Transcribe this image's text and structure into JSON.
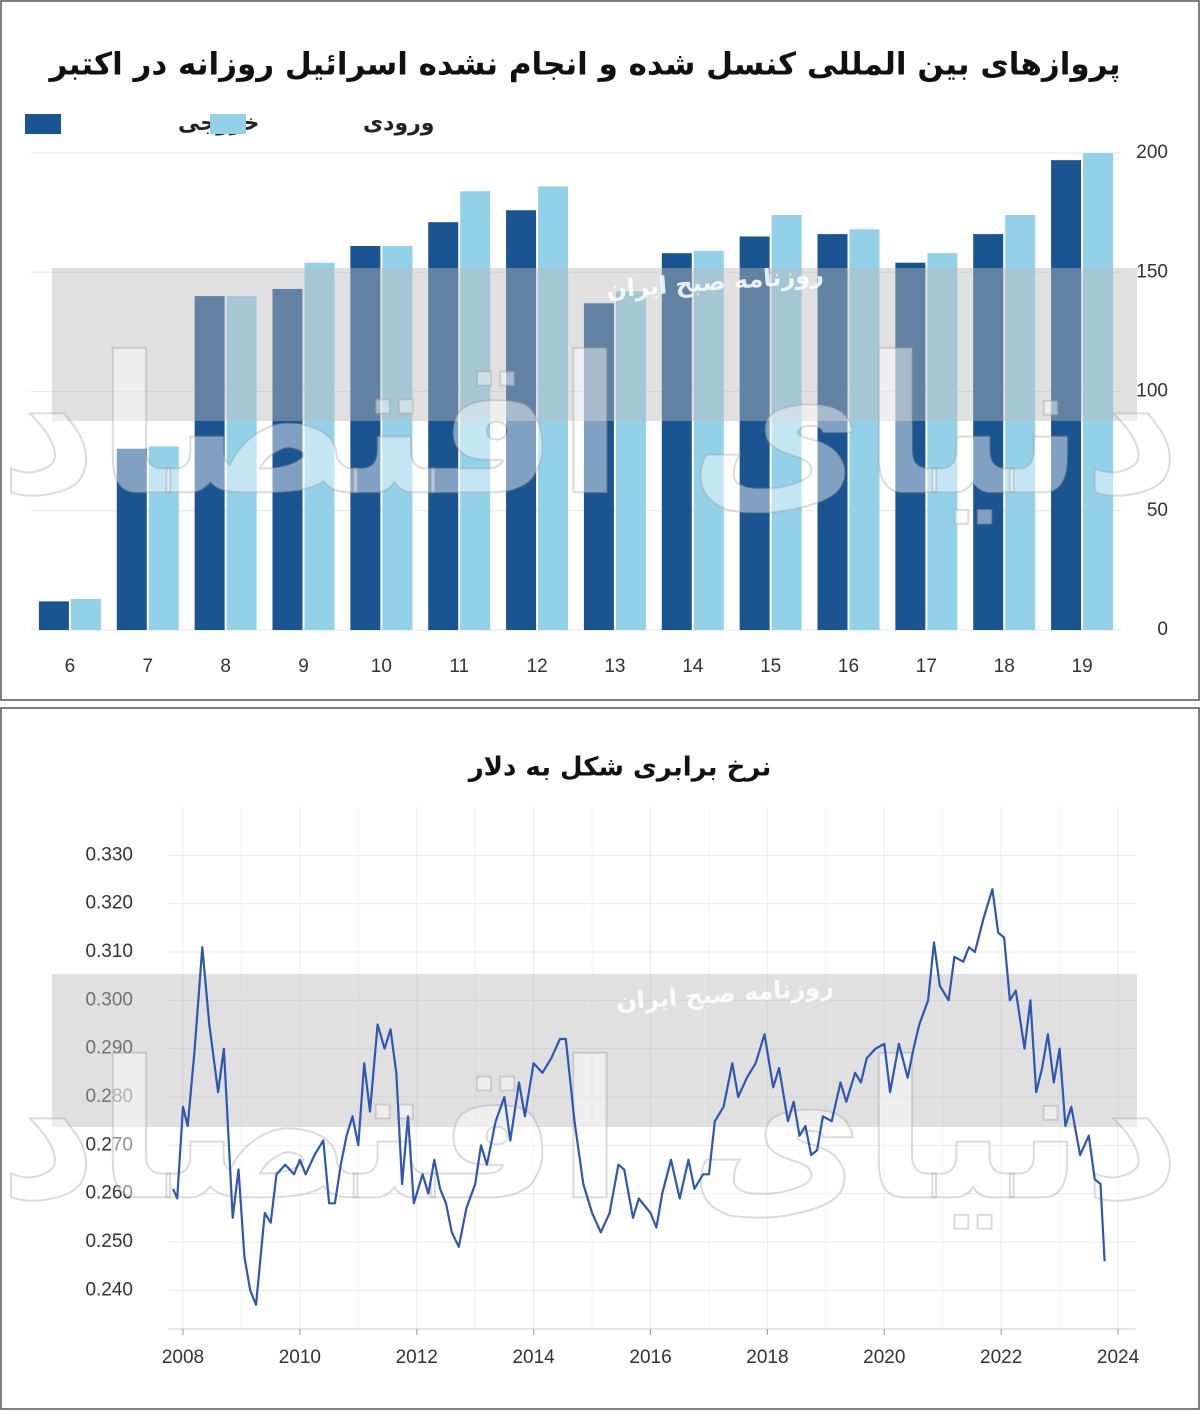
{
  "chart_data": [
    {
      "type": "bar",
      "title": "پروازهای بین المللی کنسل شده و انجام نشده اسرائیل روزانه در اکتبر",
      "categories": [
        "6",
        "7",
        "8",
        "9",
        "10",
        "11",
        "12",
        "13",
        "14",
        "15",
        "16",
        "17",
        "18",
        "19"
      ],
      "series": [
        {
          "name": "خروجی",
          "color": "#1a5591",
          "values": [
            12,
            76,
            140,
            143,
            161,
            171,
            176,
            137,
            158,
            165,
            166,
            154,
            166,
            197
          ]
        },
        {
          "name": "ورودی",
          "color": "#93d1e8",
          "values": [
            13,
            77,
            140,
            154,
            161,
            184,
            186,
            142,
            159,
            174,
            168,
            158,
            174,
            200
          ]
        }
      ],
      "ylim": [
        0,
        200
      ],
      "yticks": [
        0,
        50,
        100,
        150,
        200
      ],
      "grid": true,
      "watermark": "روزنامه صبح ایران",
      "logo": "دنیای اقتصاد"
    },
    {
      "type": "line",
      "title": "نرخ برابری شکل به دلار",
      "color": "#2f56b0",
      "x": [
        2007.83,
        2007.9,
        2008.0,
        2008.08,
        2008.2,
        2008.33,
        2008.45,
        2008.6,
        2008.7,
        2008.85,
        2008.95,
        2009.05,
        2009.15,
        2009.25,
        2009.4,
        2009.5,
        2009.6,
        2009.75,
        2009.9,
        2010.0,
        2010.1,
        2010.25,
        2010.4,
        2010.5,
        2010.6,
        2010.7,
        2010.8,
        2010.9,
        2011.0,
        2011.1,
        2011.2,
        2011.33,
        2011.45,
        2011.55,
        2011.65,
        2011.75,
        2011.85,
        2011.95,
        2012.1,
        2012.2,
        2012.3,
        2012.4,
        2012.5,
        2012.6,
        2012.72,
        2012.85,
        2013.0,
        2013.1,
        2013.2,
        2013.35,
        2013.5,
        2013.6,
        2013.75,
        2013.85,
        2014.0,
        2014.15,
        2014.3,
        2014.45,
        2014.55,
        2014.7,
        2014.85,
        2015.0,
        2015.15,
        2015.3,
        2015.45,
        2015.55,
        2015.7,
        2015.8,
        2016.0,
        2016.1,
        2016.2,
        2016.35,
        2016.5,
        2016.65,
        2016.75,
        2016.9,
        2017.0,
        2017.1,
        2017.25,
        2017.4,
        2017.5,
        2017.65,
        2017.8,
        2017.95,
        2018.1,
        2018.2,
        2018.35,
        2018.45,
        2018.55,
        2018.65,
        2018.75,
        2018.85,
        2018.95,
        2019.1,
        2019.25,
        2019.35,
        2019.5,
        2019.6,
        2019.7,
        2019.85,
        2020.0,
        2020.1,
        2020.25,
        2020.4,
        2020.5,
        2020.6,
        2020.75,
        2020.85,
        2020.95,
        2021.1,
        2021.2,
        2021.35,
        2021.45,
        2021.55,
        2021.7,
        2021.85,
        2021.95,
        2022.05,
        2022.15,
        2022.25,
        2022.4,
        2022.5,
        2022.6,
        2022.7,
        2022.8,
        2022.9,
        2023.0,
        2023.1,
        2023.2,
        2023.35,
        2023.5,
        2023.6,
        2023.7,
        2023.77
      ],
      "values": [
        0.261,
        0.259,
        0.278,
        0.274,
        0.29,
        0.311,
        0.295,
        0.281,
        0.29,
        0.255,
        0.265,
        0.247,
        0.24,
        0.237,
        0.256,
        0.254,
        0.264,
        0.266,
        0.264,
        0.267,
        0.264,
        0.268,
        0.271,
        0.258,
        0.258,
        0.266,
        0.272,
        0.276,
        0.27,
        0.287,
        0.277,
        0.295,
        0.29,
        0.294,
        0.285,
        0.262,
        0.276,
        0.258,
        0.264,
        0.26,
        0.267,
        0.261,
        0.258,
        0.252,
        0.249,
        0.257,
        0.262,
        0.27,
        0.266,
        0.275,
        0.28,
        0.271,
        0.283,
        0.276,
        0.287,
        0.285,
        0.288,
        0.292,
        0.292,
        0.275,
        0.262,
        0.256,
        0.252,
        0.256,
        0.266,
        0.265,
        0.255,
        0.259,
        0.256,
        0.253,
        0.26,
        0.267,
        0.259,
        0.267,
        0.261,
        0.264,
        0.264,
        0.275,
        0.278,
        0.287,
        0.28,
        0.284,
        0.287,
        0.293,
        0.282,
        0.286,
        0.275,
        0.279,
        0.272,
        0.274,
        0.268,
        0.269,
        0.276,
        0.275,
        0.283,
        0.279,
        0.285,
        0.283,
        0.288,
        0.29,
        0.291,
        0.281,
        0.291,
        0.284,
        0.29,
        0.295,
        0.3,
        0.312,
        0.303,
        0.3,
        0.309,
        0.308,
        0.311,
        0.31,
        0.317,
        0.323,
        0.314,
        0.313,
        0.3,
        0.302,
        0.29,
        0.3,
        0.281,
        0.286,
        0.293,
        0.283,
        0.29,
        0.274,
        0.278,
        0.268,
        0.272,
        0.263,
        0.262,
        0.246
      ],
      "xlim": [
        2007.75,
        2024.3
      ],
      "xticks": [
        2008,
        2010,
        2012,
        2014,
        2016,
        2018,
        2020,
        2022,
        2024
      ],
      "ylim": [
        0.232,
        0.34
      ],
      "yticks": [
        {
          "value": 0.24,
          "label": "0.240"
        },
        {
          "value": 0.25,
          "label": "0.250"
        },
        {
          "value": 0.26,
          "label": "0.260"
        },
        {
          "value": 0.27,
          "label": "0.270"
        },
        {
          "value": 0.28,
          "label": "0.280"
        },
        {
          "value": 0.29,
          "label": "0.290"
        },
        {
          "value": 0.3,
          "label": "0.300"
        },
        {
          "value": 0.31,
          "label": "0.310"
        },
        {
          "value": 0.32,
          "label": "0.320"
        },
        {
          "value": 0.33,
          "label": "0.330"
        }
      ],
      "grid": true,
      "watermark": "روزنامه صبح ایران",
      "logo": "دنیای اقتصاد"
    }
  ]
}
